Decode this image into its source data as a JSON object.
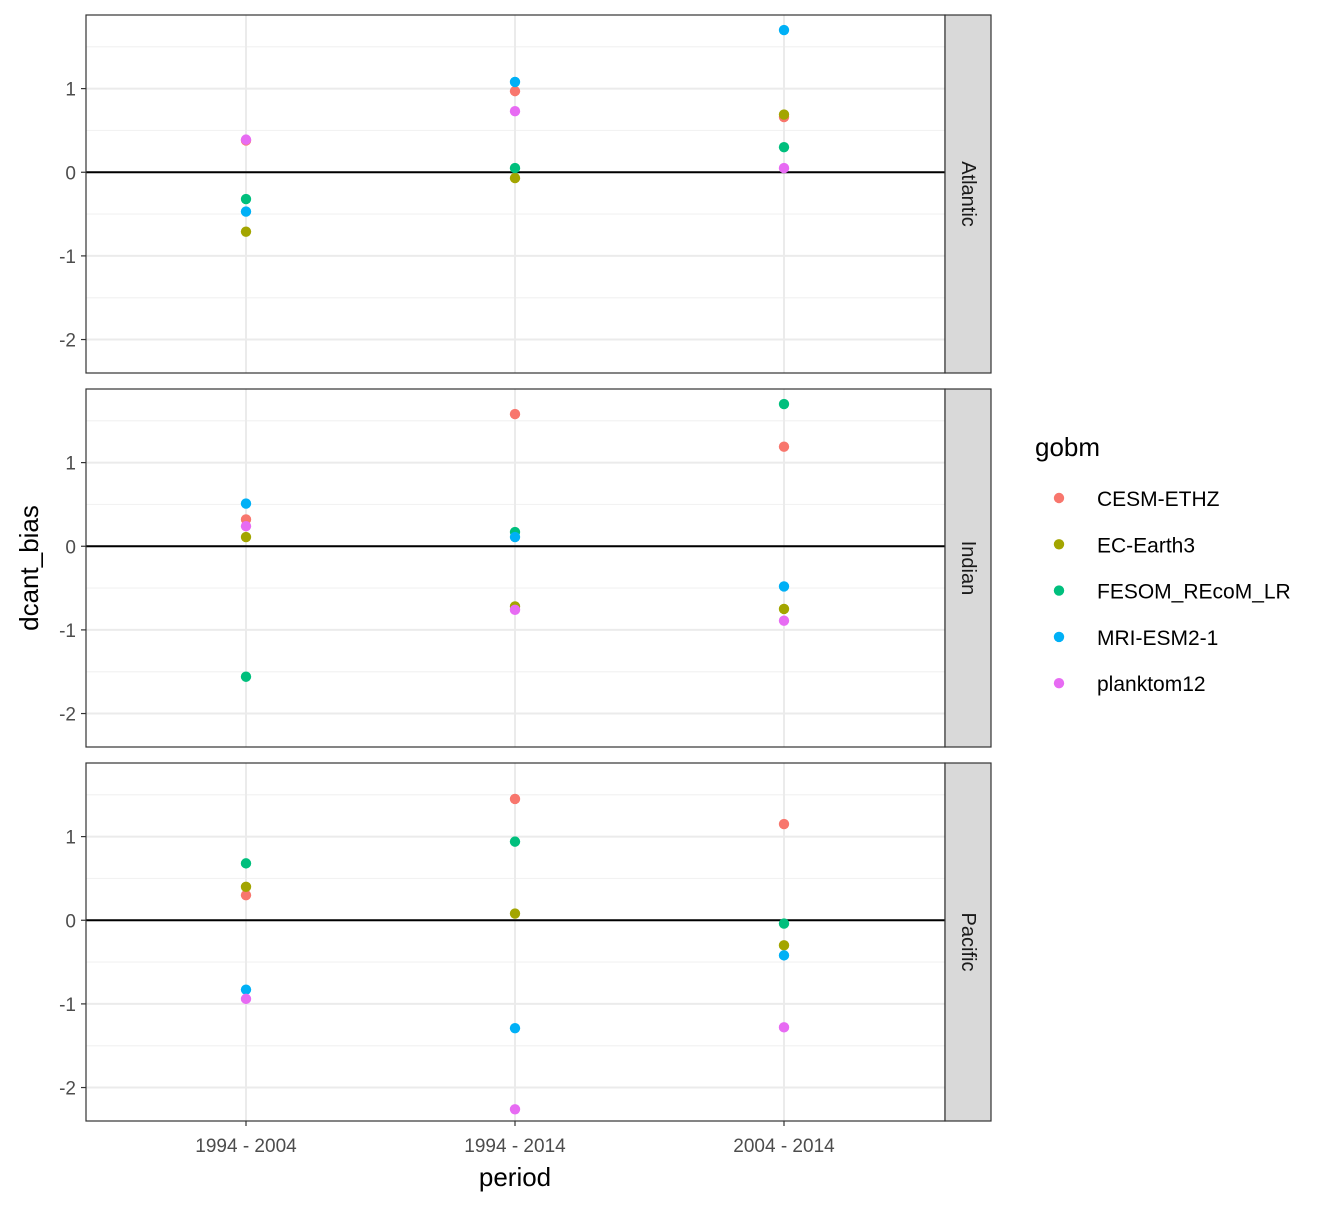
{
  "chart_data": {
    "type": "scatter",
    "xlabel": "period",
    "ylabel": "dcant_bias",
    "categories": [
      "1994 - 2004",
      "1994 - 2014",
      "2004 - 2014"
    ],
    "ylim": [
      -2.4,
      1.88
    ],
    "y_ticks": [
      -2,
      -1,
      0,
      1
    ],
    "y_tick_labels": [
      "-2",
      "-1",
      "0",
      "1"
    ],
    "hline_y": 0,
    "grid": true,
    "legend": {
      "title": "gobm",
      "position": "right",
      "entries": [
        "CESM-ETHZ",
        "EC-Earth3",
        "FESOM_REcoM_LR",
        "MRI-ESM2-1",
        "planktom12"
      ]
    },
    "colors": {
      "CESM-ETHZ": "#F8766D",
      "EC-Earth3": "#A3A500",
      "FESOM_REcoM_LR": "#00BF7D",
      "MRI-ESM2-1": "#00B0F6",
      "planktom12": "#E76BF3"
    },
    "facets": [
      {
        "label": "Atlantic",
        "series": [
          {
            "name": "CESM-ETHZ",
            "values": [
              0.38,
              0.97,
              0.66
            ]
          },
          {
            "name": "EC-Earth3",
            "values": [
              -0.71,
              -0.07,
              0.69
            ]
          },
          {
            "name": "FESOM_REcoM_LR",
            "values": [
              -0.32,
              0.05,
              0.3
            ]
          },
          {
            "name": "MRI-ESM2-1",
            "values": [
              -0.47,
              1.08,
              1.7
            ]
          },
          {
            "name": "planktom12",
            "values": [
              0.39,
              0.73,
              0.05
            ]
          }
        ]
      },
      {
        "label": "Indian",
        "series": [
          {
            "name": "CESM-ETHZ",
            "values": [
              0.32,
              1.58,
              1.19
            ]
          },
          {
            "name": "EC-Earth3",
            "values": [
              0.11,
              -0.72,
              -0.75
            ]
          },
          {
            "name": "FESOM_REcoM_LR",
            "values": [
              -1.56,
              0.17,
              1.7
            ]
          },
          {
            "name": "MRI-ESM2-1",
            "values": [
              0.51,
              0.11,
              -0.48
            ]
          },
          {
            "name": "planktom12",
            "values": [
              0.24,
              -0.76,
              -0.89
            ]
          }
        ]
      },
      {
        "label": "Pacific",
        "series": [
          {
            "name": "CESM-ETHZ",
            "values": [
              0.3,
              1.45,
              1.15
            ]
          },
          {
            "name": "EC-Earth3",
            "values": [
              0.4,
              0.08,
              -0.3
            ]
          },
          {
            "name": "FESOM_REcoM_LR",
            "values": [
              0.68,
              0.94,
              -0.04
            ]
          },
          {
            "name": "MRI-ESM2-1",
            "values": [
              -0.83,
              -1.29,
              -0.42
            ]
          },
          {
            "name": "planktom12",
            "values": [
              -0.94,
              -2.26,
              -1.28
            ]
          }
        ]
      }
    ]
  }
}
